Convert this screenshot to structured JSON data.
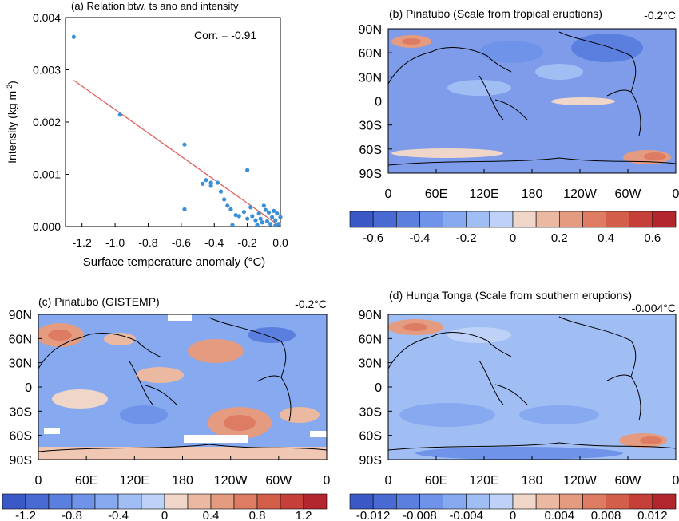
{
  "panels": {
    "a": {
      "title": "(a) Relation btw. ts ano and intensity",
      "corr_label": "Corr. = -0.91",
      "ylabel_main": "Intensity (kg m",
      "ylabel_sup": "-2",
      "ylabel_end": ")",
      "xlabel": "Surface temperature anomaly (°C)"
    },
    "b": {
      "title": "(b) Pinatubo (Scale from tropical eruptions)",
      "mean": "-0.2°C"
    },
    "c": {
      "title": "(c) Pinatubo (GISTEMP)",
      "mean": "-0.2°C"
    },
    "d": {
      "title": "(d) Hunga Tonga (Scale from southern eruptions)",
      "mean": "-0.004°C"
    }
  },
  "chart_data": [
    {
      "type": "scatter",
      "panel": "a",
      "title": "(a) Relation btw. ts ano and intensity",
      "xlabel": "Surface temperature anomaly (°C)",
      "ylabel": "Intensity (kg m-2)",
      "xlim": [
        -1.3,
        0.0
      ],
      "ylim": [
        0.0,
        0.004
      ],
      "xticks": [
        "-1.2",
        "-1.0",
        "-0.8",
        "-0.6",
        "-0.4",
        "-0.2",
        "0.0"
      ],
      "yticks": [
        "0.000",
        "0.001",
        "0.002",
        "0.003",
        "0.004"
      ],
      "annotation": "Corr. = -0.91",
      "point_color": "#3b8fd6",
      "fit_color": "#e0605a",
      "points": [
        [
          -1.25,
          0.00363
        ],
        [
          -0.97,
          0.00214
        ],
        [
          -0.58,
          0.00157
        ],
        [
          -0.58,
          0.00033
        ],
        [
          -0.47,
          0.00082
        ],
        [
          -0.45,
          0.00089
        ],
        [
          -0.42,
          0.00084
        ],
        [
          -0.42,
          0.00078
        ],
        [
          -0.38,
          0.00084
        ],
        [
          -0.36,
          0.00067
        ],
        [
          -0.34,
          0.00052
        ],
        [
          -0.32,
          0.0004
        ],
        [
          -0.3,
          0.00033
        ],
        [
          -0.29,
          3e-05
        ],
        [
          -0.27,
          0.00022
        ],
        [
          -0.25,
          0.0002
        ],
        [
          -0.22,
          0.00028
        ],
        [
          -0.2,
          0.00108
        ],
        [
          -0.2,
          0.00015
        ],
        [
          -0.18,
          0.00037
        ],
        [
          -0.17,
          0.0002
        ],
        [
          -0.15,
          0.00012
        ],
        [
          -0.14,
          3e-05
        ],
        [
          -0.13,
          0.00025
        ],
        [
          -0.12,
          0.00015
        ],
        [
          -0.11,
          8e-05
        ],
        [
          -0.1,
          0.0004
        ],
        [
          -0.09,
          0.00032
        ],
        [
          -0.08,
          0.0001
        ],
        [
          -0.07,
          0.00027
        ],
        [
          -0.06,
          5e-05
        ],
        [
          -0.05,
          0.00018
        ],
        [
          -0.04,
          0.0003
        ],
        [
          -0.03,
          0.00012
        ],
        [
          -0.02,
          0.00025
        ],
        [
          -0.01,
          5e-05
        ],
        [
          0.0,
          0.00018
        ],
        [
          -0.03,
          2e-05
        ]
      ],
      "fit_line": [
        [
          -1.25,
          0.0028
        ],
        [
          0.0,
          0.0
        ]
      ]
    },
    {
      "type": "heatmap",
      "panel": "b",
      "title": "(b) Pinatubo (Scale from tropical eruptions)",
      "global_mean": "-0.2°C",
      "lat_ticks": [
        "90N",
        "60N",
        "30N",
        "0",
        "30S",
        "60S",
        "90S"
      ],
      "lon_ticks": [
        "0",
        "60E",
        "120E",
        "180",
        "120W",
        "60W",
        "0"
      ],
      "colorbar_ticks": [
        "-0.6",
        "-0.4",
        "-0.2",
        "0",
        "0.2",
        "0.4",
        "0.6"
      ],
      "colorbar_range": [
        -0.7,
        0.7
      ]
    },
    {
      "type": "heatmap",
      "panel": "c",
      "title": "(c) Pinatubo (GISTEMP)",
      "global_mean": "-0.2°C",
      "lat_ticks": [
        "90N",
        "60N",
        "30N",
        "0",
        "30S",
        "60S",
        "90S"
      ],
      "lon_ticks": [
        "0",
        "60E",
        "120E",
        "180",
        "120W",
        "60W",
        "0"
      ],
      "colorbar_ticks": [
        "-1.2",
        "-0.8",
        "-0.4",
        "0",
        "0.4",
        "0.8",
        "1.2"
      ],
      "colorbar_range": [
        -1.4,
        1.4
      ]
    },
    {
      "type": "heatmap",
      "panel": "d",
      "title": "(d) Hunga Tonga (Scale from southern eruptions)",
      "global_mean": "-0.004°C",
      "lat_ticks": [
        "90N",
        "60N",
        "30N",
        "0",
        "30S",
        "60S",
        "90S"
      ],
      "lon_ticks": [
        "0",
        "60E",
        "120E",
        "180",
        "120W",
        "60W",
        "0"
      ],
      "colorbar_ticks": [
        "-0.012",
        "-0.008",
        "-0.004",
        "0",
        "0.004",
        "0.008",
        "0.012"
      ],
      "colorbar_range": [
        -0.014,
        0.014
      ]
    }
  ],
  "colors": {
    "colorbar": [
      "#3a58c6",
      "#4a6ad3",
      "#5b7fde",
      "#6f93e8",
      "#87a9ef",
      "#a1bef4",
      "#bdd2f6",
      "#f0d6c8",
      "#ebb9a2",
      "#e59b80",
      "#dd7c63",
      "#d35f4b",
      "#c54039",
      "#b3262d"
    ],
    "ocean_base": "#88a6ec",
    "land_line": "#000000"
  }
}
